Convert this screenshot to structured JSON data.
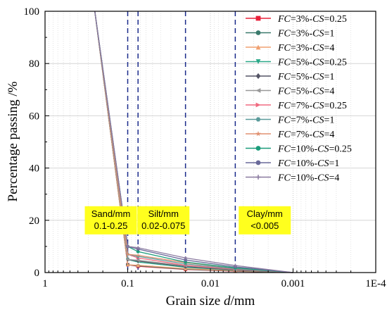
{
  "chart_data": {
    "type": "line",
    "xlabel": "Grain size d/mm",
    "ylabel": "Percentage passing /%",
    "x_scale": "log",
    "x_reversed": true,
    "xlim": [
      1,
      0.0001
    ],
    "ylim": [
      0,
      100
    ],
    "x_ticks": [
      1,
      0.1,
      0.01,
      0.001,
      0.0001
    ],
    "x_tick_labels": [
      "1",
      "0.1",
      "0.01",
      "0.001",
      "1E-4"
    ],
    "y_ticks": [
      0,
      20,
      40,
      60,
      80,
      100
    ],
    "grid": true,
    "legend_position": "top-right",
    "boundaries": [
      0.1,
      0.075,
      0.02,
      0.005
    ],
    "annotations": [
      {
        "lines": [
          "Sand/mm",
          "0.1-0.25"
        ],
        "x": 0.16,
        "y": 20
      },
      {
        "lines": [
          "Silt/mm",
          "0.02-0.075"
        ],
        "x": 0.037,
        "y": 20
      },
      {
        "lines": [
          "Clay/mm",
          "<0.005"
        ],
        "x": 0.0022,
        "y": 20
      }
    ],
    "x": [
      0.25,
      0.1,
      0.075,
      0.02,
      0.005,
      0.001
    ],
    "series": [
      {
        "name": "FC=3%-CS=0.25",
        "color": "#e8203a",
        "marker": "square",
        "values": [
          100,
          3.0,
          2.4,
          1.2,
          0.5,
          0
        ]
      },
      {
        "name": "FC=3%-CS=1",
        "color": "#3a7a6c",
        "marker": "circle",
        "values": [
          100,
          3.0,
          2.6,
          1.3,
          0.6,
          0
        ]
      },
      {
        "name": "FC=3%-CS=4",
        "color": "#f0a070",
        "marker": "triangle-up",
        "values": [
          100,
          3.0,
          2.8,
          1.5,
          0.7,
          0
        ]
      },
      {
        "name": "FC=5%-CS=0.25",
        "color": "#2aa888",
        "marker": "triangle-down",
        "values": [
          100,
          5.0,
          4.0,
          2.0,
          0.9,
          0
        ]
      },
      {
        "name": "FC=5%-CS=1",
        "color": "#555566",
        "marker": "diamond",
        "values": [
          100,
          5.0,
          4.4,
          2.3,
          1.0,
          0
        ]
      },
      {
        "name": "FC=5%-CS=4",
        "color": "#999999",
        "marker": "triangle-left",
        "values": [
          100,
          5.0,
          4.7,
          2.6,
          1.2,
          0
        ]
      },
      {
        "name": "FC=7%-CS=0.25",
        "color": "#f06a80",
        "marker": "triangle-right",
        "values": [
          100,
          7.0,
          5.6,
          2.8,
          1.3,
          0
        ]
      },
      {
        "name": "FC=7%-CS=1",
        "color": "#5a9a9a",
        "marker": "hexagon",
        "values": [
          100,
          7.0,
          6.2,
          3.3,
          1.5,
          0
        ]
      },
      {
        "name": "FC=7%-CS=4",
        "color": "#e09070",
        "marker": "star",
        "values": [
          100,
          7.0,
          6.6,
          3.8,
          1.8,
          0
        ]
      },
      {
        "name": "FC=10%-CS=0.25",
        "color": "#1a9c7a",
        "marker": "circle",
        "values": [
          100,
          10.0,
          8.0,
          4.0,
          1.8,
          0
        ]
      },
      {
        "name": "FC=10%-CS=1",
        "color": "#6a6a9a",
        "marker": "circle",
        "values": [
          100,
          10.0,
          9.0,
          4.8,
          2.2,
          0
        ]
      },
      {
        "name": "FC=10%-CS=4",
        "color": "#8a7aa0",
        "marker": "plus",
        "values": [
          100,
          10.0,
          9.5,
          5.6,
          2.7,
          0
        ]
      }
    ]
  }
}
